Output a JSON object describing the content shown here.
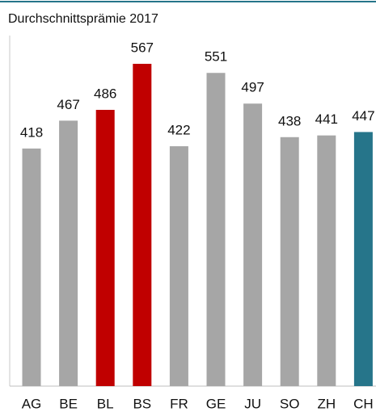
{
  "chart_data": {
    "type": "bar",
    "title": "Durchschnittsprämie 2017",
    "categories": [
      "AG",
      "BE",
      "BL",
      "BS",
      "FR",
      "GE",
      "JU",
      "SO",
      "ZH",
      "CH"
    ],
    "values": [
      418,
      467,
      486,
      567,
      422,
      551,
      497,
      438,
      441,
      447
    ],
    "colors": [
      "#a6a6a6",
      "#a6a6a6",
      "#c00000",
      "#c00000",
      "#a6a6a6",
      "#a6a6a6",
      "#a6a6a6",
      "#a6a6a6",
      "#a6a6a6",
      "#26758a"
    ]
  }
}
